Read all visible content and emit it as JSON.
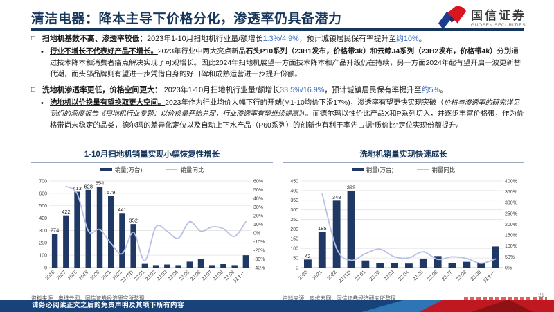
{
  "header": {
    "title": "清洁电器：降本主导下价格分化，渗透率仍具备潜力",
    "logo_cn": "国信证券",
    "logo_en": "GUOSEN SECURITIES"
  },
  "body": {
    "bullet1": {
      "marker": "□",
      "segments": [
        {
          "s": "bold",
          "t": "扫地机基数不高、渗透率较低："
        },
        {
          "t": "2023年1-10月扫地机行业量/额增长"
        },
        {
          "s": "blue",
          "t": "1.3%/4.9%"
        },
        {
          "t": "，预计城镇居民保有率提升至"
        },
        {
          "s": "blue",
          "t": "约10%"
        },
        {
          "t": "。"
        }
      ]
    },
    "sub1": {
      "marker": "•",
      "segments": [
        {
          "s": "boldu",
          "t": "行业不增长不代表好产品不增长。"
        },
        {
          "t": "2023年行业中两大亮点新品"
        },
        {
          "s": "bold",
          "t": "石头P10系列（23H1发布，价格带3k）"
        },
        {
          "t": "和"
        },
        {
          "s": "bold",
          "t": "云鲸J4系列（23H2发布，价格带4k）"
        },
        {
          "t": "分别通过技术降本和消费者痛点解决实现了可观增长。因此2024年扫地机展望一方面技术降本和产品升级仍在持续，另一方面2024年起有望开启一波更新替代潮，而头部品牌则有望进一步凭借自身的好口碑和成熟运营进一步提升份额。"
        }
      ]
    },
    "bullet2": {
      "marker": "□",
      "segments": [
        {
          "s": "bold",
          "t": "洗地机渗透率更低，价格空间更大："
        },
        {
          "t": " 2023年1-10月扫地机行业量/额增长"
        },
        {
          "s": "blue",
          "t": "33.5%/16.9%"
        },
        {
          "t": "，预计城镇居民保有率提升至"
        },
        {
          "s": "blue",
          "t": "约5%"
        },
        {
          "t": "。"
        }
      ]
    },
    "sub2": {
      "marker": "•",
      "segments": [
        {
          "s": "boldu",
          "t": "洗地机以价换量有望换取更大空间。"
        },
        {
          "t": "2023年作为行业均价大幅下行的开端(M1-10均价下滑17%)，渗透率有望更快实现突破（"
        },
        {
          "s": "italic",
          "t": "价格与渗透率的研究详见我们的深度报告《扫地机行业专题：以价换量开始兑现，行业渗透率有望继续提高》"
        },
        {
          "t": "）。而德尔玛以性价比产品X和P系列切入，并逐步丰富价格带，作为价格带尚未稳定的品类，德尔玛的差异化定位以及自动上下水产品（P60系列）的创新也有利于率先占据“质价比”定位实现份额提升。"
        }
      ]
    }
  },
  "chart_data": [
    {
      "type": "bar+line",
      "title": "1-10月扫地机销量实现小幅恢复性增长",
      "categories": [
        "2016",
        "2017",
        "2018",
        "2019",
        "2020",
        "2021",
        "2022",
        "23YTD",
        "23.01",
        "23.02",
        "23.03",
        "23.04",
        "23.05",
        "23.06",
        "23.07",
        "23.08",
        "23.09",
        "双十一"
      ],
      "series": [
        {
          "name": "销量(万台)",
          "type": "bar",
          "axis": "left",
          "values": [
            274,
            422,
            613,
            628,
            654,
            579,
            441,
            352,
            30,
            20,
            25,
            20,
            48,
            68,
            20,
            28,
            20,
            100
          ],
          "labels": [
            274,
            422,
            613,
            628,
            654,
            579,
            441,
            352,
            null,
            null,
            null,
            null,
            null,
            null,
            null,
            null,
            null,
            null
          ]
        },
        {
          "name": "销量同比",
          "type": "line",
          "axis": "right",
          "values": [
            null,
            54,
            45,
            2,
            4,
            -12,
            -24,
            1,
            -32,
            7,
            2,
            -6,
            13,
            2,
            7,
            5,
            -4,
            13
          ]
        }
      ],
      "ylim": [
        0,
        700
      ],
      "ystep": 100,
      "y2lim": [
        -40,
        60
      ],
      "y2step": 10,
      "grid": true,
      "legend_position": "top",
      "source": "资料来源：奥维云网，国信证券经济研究所整理"
    },
    {
      "type": "bar+line",
      "title": "洗地机销量实现快速成长",
      "categories": [
        "2020",
        "2021",
        "2022",
        "23YTD",
        "23.01",
        "23.02",
        "23.03",
        "23.04",
        "23.05",
        "23.06",
        "23.07",
        "23.08",
        "23.09",
        "双十一"
      ],
      "series": [
        {
          "name": "销量(万台)",
          "type": "bar",
          "axis": "left",
          "values": [
            42,
            185,
            348,
            399,
            37,
            23,
            25,
            21,
            47,
            60,
            22,
            30,
            25,
            110
          ],
          "labels": [
            42,
            185,
            348,
            399,
            null,
            null,
            null,
            null,
            null,
            null,
            null,
            null,
            null,
            null
          ]
        },
        {
          "name": "销量同比",
          "type": "line",
          "axis": "right",
          "values": [
            null,
            340,
            88,
            34,
            65,
            85,
            50,
            45,
            73,
            38,
            50,
            42,
            20,
            40
          ]
        }
      ],
      "ylim": [
        0,
        450
      ],
      "ystep": 50,
      "y2lim": [
        0,
        400
      ],
      "y2step": 50,
      "grid": true,
      "legend_position": "top",
      "source": "资料来源：奥维云网，国信证券经济研究所整理"
    }
  ],
  "footer": {
    "disclaimer": "请务必阅读正文之后的免责声明及其项下所有内容",
    "page_number": "21"
  },
  "colors": {
    "title_navy": "#16365C",
    "bar_navy": "#1F3864",
    "line_lavender": "#B9C0E6",
    "accent_blue": "#3B6FC4",
    "footer_blue": "#17427A",
    "footer_red": "#C01820"
  }
}
